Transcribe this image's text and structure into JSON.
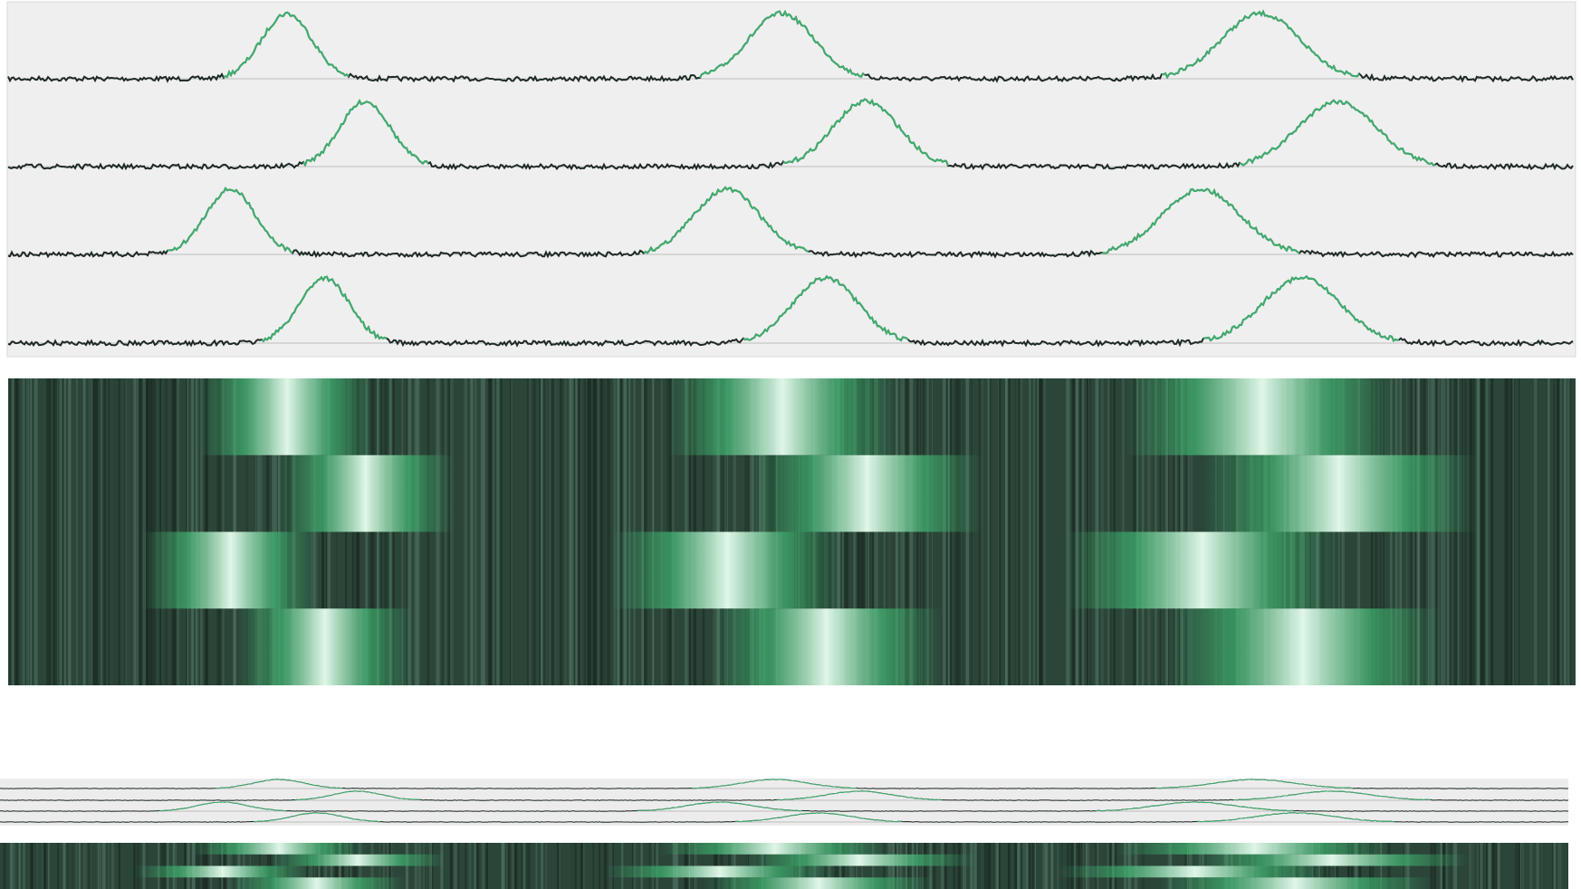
{
  "chart_data": {
    "type": "trace",
    "xlim": [
      0,
      100
    ],
    "series": [
      {
        "color": "#3fae6e",
        "peaks": [
          17.8,
          49.4,
          80.0
        ],
        "widths": [
          1.6,
          2.1,
          2.5
        ]
      },
      {
        "color": "#3fae6e",
        "peaks": [
          22.8,
          54.8,
          84.9
        ],
        "widths": [
          1.6,
          2.1,
          2.5
        ]
      },
      {
        "color": "#3fae6e",
        "peaks": [
          14.2,
          45.9,
          76.2
        ],
        "widths": [
          1.6,
          2.1,
          2.5
        ]
      },
      {
        "color": "#3fae6e",
        "peaks": [
          20.2,
          52.2,
          82.6
        ],
        "widths": [
          1.6,
          2.1,
          2.5
        ]
      }
    ]
  }
}
